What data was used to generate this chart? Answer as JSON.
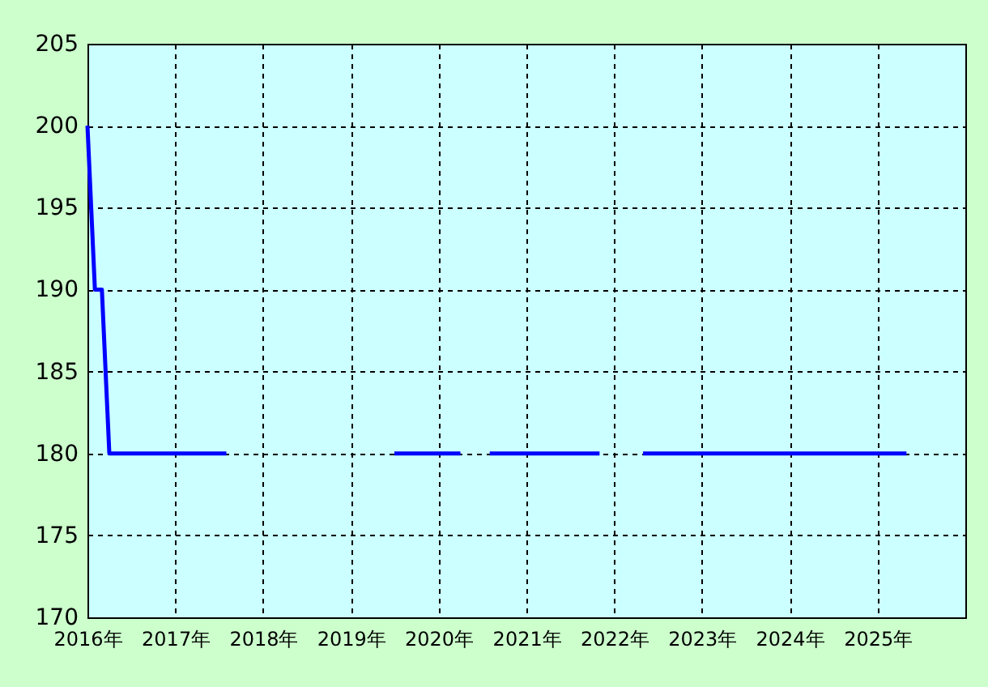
{
  "chart_data": {
    "type": "line",
    "x": [
      "2016-01",
      "2016-02",
      "2016-03",
      "2016-04",
      "2017-08",
      "2017-09",
      "2019-07",
      "2020-04",
      "2020-06",
      "2020-08",
      "2021-11",
      "2022-02",
      "2022-05",
      "2025-05"
    ],
    "series": [
      {
        "color": "#0000ff",
        "values": [
          200,
          190,
          190,
          180,
          180,
          null,
          180,
          180,
          null,
          180,
          180,
          null,
          180,
          180
        ]
      }
    ],
    "xlim": [
      "2016",
      "2026"
    ],
    "xticks": [
      {
        "value": "2016",
        "label": "2016年"
      },
      {
        "value": "2017",
        "label": "2017年"
      },
      {
        "value": "2018",
        "label": "2018年"
      },
      {
        "value": "2019",
        "label": "2019年"
      },
      {
        "value": "2020",
        "label": "2020年"
      },
      {
        "value": "2021",
        "label": "2021年"
      },
      {
        "value": "2022",
        "label": "2022年"
      },
      {
        "value": "2023",
        "label": "2023年"
      },
      {
        "value": "2024",
        "label": "2024年"
      },
      {
        "value": "2025",
        "label": "2025年"
      }
    ],
    "ylim": [
      170,
      205
    ],
    "yticks": [
      170,
      175,
      180,
      185,
      190,
      195,
      200,
      205
    ],
    "grid": true,
    "line_style": "solid",
    "marker": "none"
  }
}
